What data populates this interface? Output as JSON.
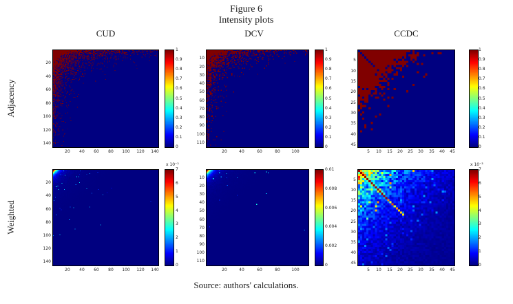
{
  "figure": {
    "title": "Figure 6",
    "subtitle": "Intensity plots",
    "columns": [
      "CUD",
      "DCV",
      "CCDC"
    ],
    "rows": [
      "Adjacency",
      "Weighted"
    ],
    "source": "Source: authors' calculations."
  },
  "colors": {
    "background": "#ffffff",
    "axis_frame": "#000000",
    "heatmap_low": "#000080",
    "heatmap_high": "#800000"
  },
  "chart_data": [
    {
      "id": "adjacency-cud",
      "type": "heatmap",
      "row_label": "Adjacency",
      "column_label": "CUD",
      "colormap": "jet",
      "n": 145,
      "x_ticks": [
        20,
        40,
        60,
        80,
        100,
        120,
        140
      ],
      "y_ticks": [
        20,
        40,
        60,
        80,
        100,
        120,
        140
      ],
      "colorbar": {
        "min": 0,
        "max": 1,
        "tick_values": [
          0,
          0.1,
          0.2,
          0.3,
          0.4,
          0.5,
          0.6,
          0.7,
          0.8,
          0.9,
          1
        ],
        "tick_labels": [
          "0",
          "0.1",
          "0.2",
          "0.3",
          "0.4",
          "0.5",
          "0.6",
          "0.7",
          "0.8",
          "0.9",
          "1"
        ],
        "multiplier": null
      },
      "pattern": {
        "kind": "binary-corner",
        "seed": 11,
        "c": 700,
        "d": 75,
        "boost": 1.25
      },
      "description": "Binary adjacency matrix: dense dark-red block in top-left corner decaying noisily along both axes over dark-blue background"
    },
    {
      "id": "adjacency-dcv",
      "type": "heatmap",
      "row_label": "Adjacency",
      "column_label": "DCV",
      "colormap": "jet",
      "n": 115,
      "x_ticks": [
        20,
        40,
        60,
        80,
        100
      ],
      "y_ticks": [
        10,
        20,
        30,
        40,
        50,
        60,
        70,
        80,
        90,
        100,
        110
      ],
      "colorbar": {
        "min": 0,
        "max": 1,
        "tick_values": [
          0,
          0.1,
          0.2,
          0.3,
          0.4,
          0.5,
          0.6,
          0.7,
          0.8,
          0.9,
          1
        ],
        "tick_labels": [
          "0",
          "0.1",
          "0.2",
          "0.3",
          "0.4",
          "0.5",
          "0.6",
          "0.7",
          "0.8",
          "0.9",
          "1"
        ],
        "multiplier": null
      },
      "pattern": {
        "kind": "binary-corner",
        "seed": 23,
        "c": 400,
        "d": 55,
        "boost": 1.25
      },
      "description": "Binary adjacency matrix: red hotspot concentrated in top-left corner, sparser than CUD"
    },
    {
      "id": "adjacency-ccdc",
      "type": "heatmap",
      "row_label": "Adjacency",
      "column_label": "CCDC",
      "colormap": "jet",
      "n": 46,
      "x_ticks": [
        5,
        10,
        15,
        20,
        25,
        30,
        35,
        40,
        45
      ],
      "y_ticks": [
        5,
        10,
        15,
        20,
        25,
        30,
        35,
        40,
        45
      ],
      "colorbar": {
        "min": 0,
        "max": 1,
        "tick_values": [
          0,
          0.1,
          0.2,
          0.3,
          0.4,
          0.5,
          0.6,
          0.7,
          0.8,
          0.9,
          1
        ],
        "tick_labels": [
          "0",
          "0.1",
          "0.2",
          "0.3",
          "0.4",
          "0.5",
          "0.6",
          "0.7",
          "0.8",
          "0.9",
          "1"
        ],
        "multiplier": null
      },
      "pattern": {
        "kind": "binary-triangle-diag",
        "seed": 37,
        "boundary": 27,
        "soft": 2.5,
        "scatter": 0.07,
        "scatter_extent": 44,
        "diag_extent": 24
      },
      "description": "Binary adjacency matrix: large solid red upper-left triangle with blue zero diagonal and noisy boundary"
    },
    {
      "id": "weighted-cud",
      "type": "heatmap",
      "row_label": "Weighted",
      "column_label": "CUD",
      "colormap": "jet",
      "n": 145,
      "x_ticks": [
        20,
        40,
        60,
        80,
        100,
        120,
        140
      ],
      "y_ticks": [
        20,
        40,
        60,
        80,
        100,
        120,
        140
      ],
      "colorbar": {
        "min": 0,
        "max": 7,
        "tick_values": [
          0,
          1,
          2,
          3,
          4,
          5,
          6,
          7
        ],
        "tick_labels": [
          "0",
          "1",
          "2",
          "3",
          "4",
          "5",
          "6",
          "7"
        ],
        "multiplier": "x 10⁻³"
      },
      "pattern": {
        "kind": "corner-glow",
        "seed": 51,
        "decay": 4.5,
        "halo_amp": 0.1,
        "halo_decay": 18,
        "speckle_rate": 0.02,
        "speckle_decay": 40
      },
      "description": "Weighted matrix: bright red/yellow hotspot at extreme top-left corner, scattered light-blue specks fading into dark-blue field"
    },
    {
      "id": "weighted-dcv",
      "type": "heatmap",
      "row_label": "Weighted",
      "column_label": "DCV",
      "colormap": "jet",
      "n": 115,
      "x_ticks": [
        20,
        40,
        60,
        80,
        100
      ],
      "y_ticks": [
        10,
        20,
        30,
        40,
        50,
        60,
        70,
        80,
        90,
        100,
        110
      ],
      "colorbar": {
        "min": 0,
        "max": 0.01,
        "tick_values": [
          0,
          0.002,
          0.004,
          0.006,
          0.008,
          0.01
        ],
        "tick_labels": [
          "0",
          "0.002",
          "0.004",
          "0.006",
          "0.008",
          "0.01"
        ],
        "multiplier": null
      },
      "pattern": {
        "kind": "corner-glow",
        "seed": 67,
        "decay": 4.0,
        "halo_amp": 0.1,
        "halo_decay": 15,
        "speckle_rate": 0.02,
        "speckle_decay": 32
      },
      "description": "Weighted matrix: small bright hotspot at top-left corner over dark-blue field"
    },
    {
      "id": "weighted-ccdc",
      "type": "heatmap",
      "row_label": "Weighted",
      "column_label": "CCDC",
      "colormap": "jet",
      "n": 46,
      "x_ticks": [
        5,
        10,
        15,
        20,
        25,
        30,
        35,
        40,
        45
      ],
      "y_ticks": [
        5,
        10,
        15,
        20,
        25,
        30,
        35,
        40,
        45
      ],
      "colorbar": {
        "min": 0,
        "max": 7,
        "tick_values": [
          0,
          1,
          2,
          3,
          4,
          5,
          6,
          7
        ],
        "tick_labels": [
          "0",
          "1",
          "2",
          "3",
          "4",
          "5",
          "6",
          "7"
        ],
        "multiplier": "x 10⁻³"
      },
      "pattern": {
        "kind": "rich-corner-diag",
        "seed": 83,
        "amp1": 0.55,
        "decay1": 16,
        "amp2": 0.12,
        "decay2": 40,
        "diag_extent": 14,
        "diag_fade": 22,
        "yellow_rate": 0.05,
        "yellow_extent": 28,
        "blue_rate": 0.05,
        "blue_extent": 60
      },
      "description": "Weighted matrix: textured cyan/yellow upper-left region with dark-red high-value diagonal fading toward bottom-right"
    }
  ]
}
